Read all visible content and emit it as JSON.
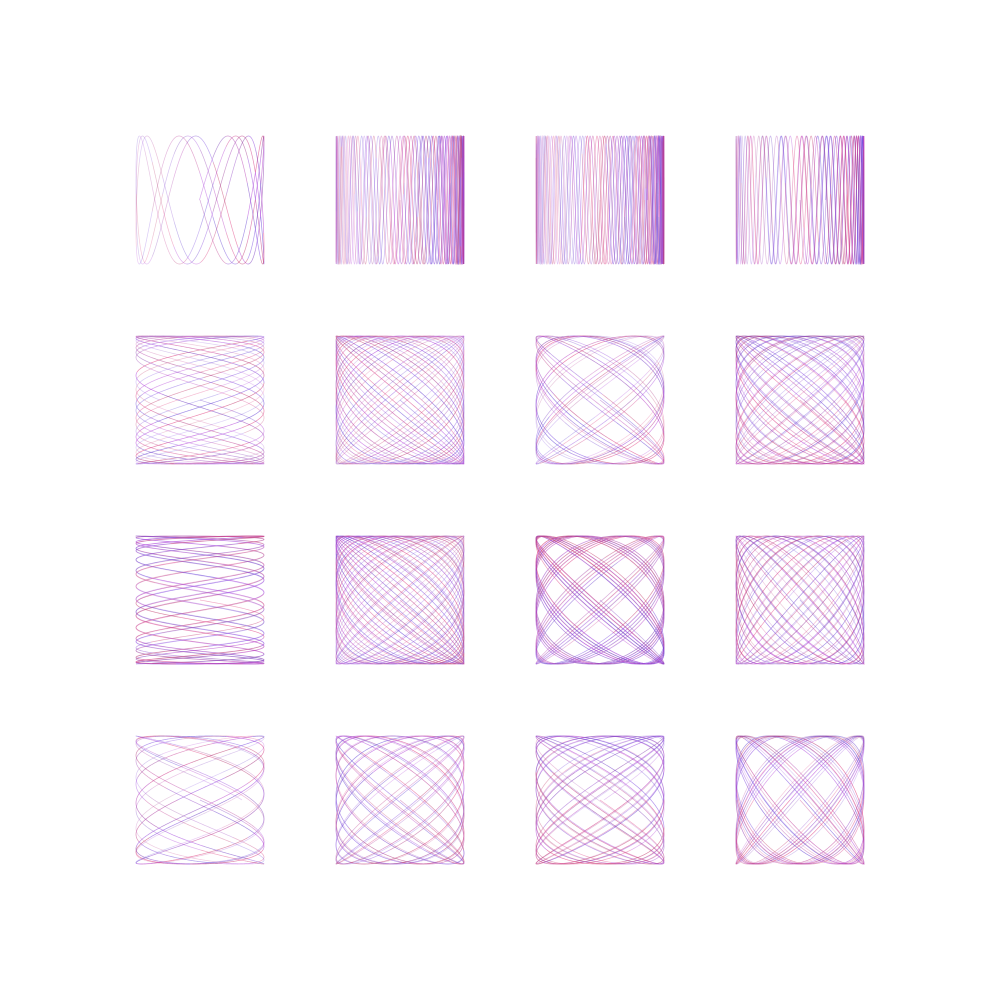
{
  "background": "#ffffff",
  "palette": [
    "#5b3bd6",
    "#b13ad8",
    "#e0387a",
    "#c23a6a",
    "#7a4be0"
  ],
  "grid": {
    "rows": 4,
    "cols": 4,
    "figures": [
      {
        "id": "r1c1",
        "freq_x": 1,
        "freq_y": 4,
        "drift": 0.015,
        "loops": 3
      },
      {
        "id": "r1c2",
        "freq_x": 1,
        "freq_y": 24,
        "drift": 0.012,
        "loops": 3
      },
      {
        "id": "r1c3",
        "freq_x": 1,
        "freq_y": 26,
        "drift": 0.011,
        "loops": 3
      },
      {
        "id": "r1c4",
        "freq_x": 1,
        "freq_y": 22,
        "drift": 0.013,
        "loops": 3
      },
      {
        "id": "r2c1",
        "freq_x": 6,
        "freq_y": 2,
        "drift": 0.02,
        "loops": 4
      },
      {
        "id": "r2c2",
        "freq_x": 7,
        "freq_y": 6,
        "drift": 0.01,
        "loops": 4
      },
      {
        "id": "r2c3",
        "freq_x": 5,
        "freq_y": 4,
        "drift": 0.012,
        "loops": 4
      },
      {
        "id": "r2c4",
        "freq_x": 8,
        "freq_y": 7,
        "drift": 0.011,
        "loops": 4
      },
      {
        "id": "r3c1",
        "freq_x": 11,
        "freq_y": 2,
        "drift": 0.016,
        "loops": 4
      },
      {
        "id": "r3c2",
        "freq_x": 9,
        "freq_y": 8,
        "drift": 0.009,
        "loops": 4
      },
      {
        "id": "r3c3",
        "freq_x": 10,
        "freq_y": 9,
        "drift": 0.01,
        "loops": 4
      },
      {
        "id": "r3c4",
        "freq_x": 7,
        "freq_y": 8,
        "drift": 0.012,
        "loops": 4
      },
      {
        "id": "r4c1",
        "freq_x": 4,
        "freq_y": 2,
        "drift": 0.025,
        "loops": 4
      },
      {
        "id": "r4c2",
        "freq_x": 6,
        "freq_y": 5,
        "drift": 0.013,
        "loops": 4
      },
      {
        "id": "r4c3",
        "freq_x": 7,
        "freq_y": 5,
        "drift": 0.011,
        "loops": 4
      },
      {
        "id": "r4c4",
        "freq_x": 6,
        "freq_y": 7,
        "drift": 0.012,
        "loops": 4
      }
    ]
  }
}
